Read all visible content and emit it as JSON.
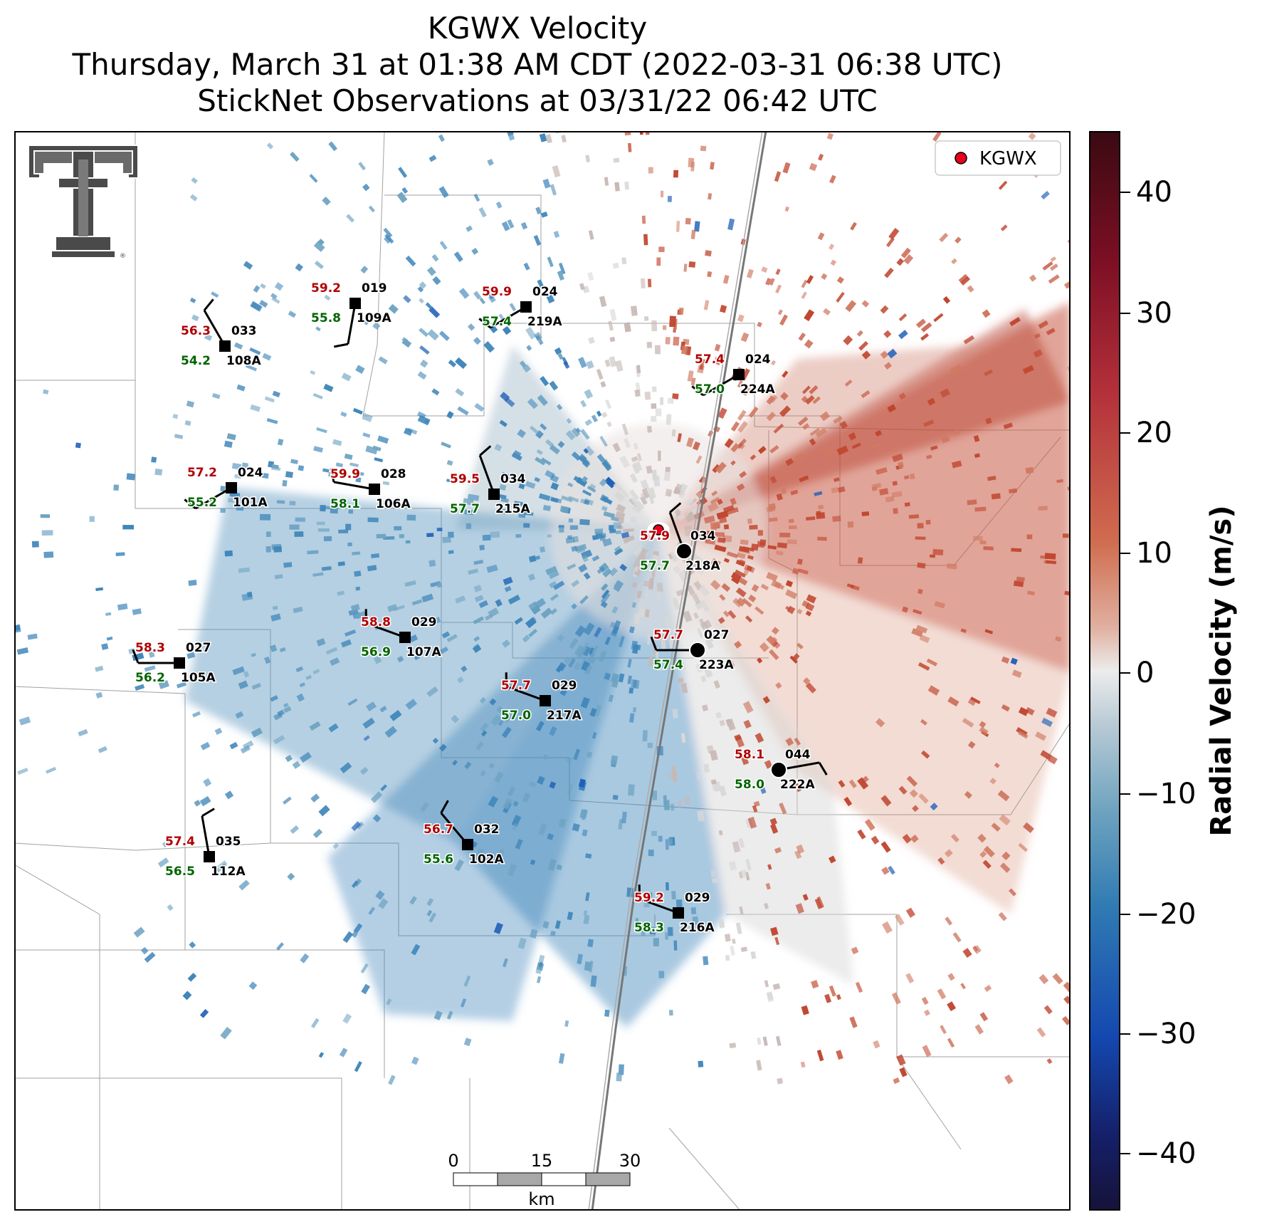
{
  "title": {
    "line1": "KGWX Velocity",
    "line2": "Thursday, March 31 at 01:38 AM CDT (2022-03-31 06:38 UTC)",
    "line3": "StickNet Observations at 03/31/22 06:42 UTC"
  },
  "legend": {
    "label": "KGWX",
    "marker_color": "#e8001c"
  },
  "colorbar": {
    "label": "Radial Velocity (m/s)",
    "ticks": [
      "40",
      "30",
      "20",
      "10",
      "0",
      "−10",
      "−20",
      "−30",
      "−40"
    ],
    "range": [
      -45,
      45
    ],
    "colors": {
      "positive": "#c0452e",
      "neutral": "#e8e8e8",
      "negative": "#2f7ab3"
    }
  },
  "scale_bar": {
    "labels": [
      "0",
      "15",
      "30"
    ],
    "unit": "km"
  },
  "logo": {
    "name": "texas-tech-double-t-logo",
    "color": "#4a4a4a"
  },
  "stations": [
    {
      "id": "109A",
      "temp": "59.2",
      "dew": "55.8",
      "dir": "019"
    },
    {
      "id": "219A",
      "temp": "59.9",
      "dew": "57.4",
      "dir": "024"
    },
    {
      "id": "108A",
      "temp": "56.3",
      "dew": "54.2",
      "dir": "033"
    },
    {
      "id": "224A",
      "temp": "57.4",
      "dew": "57.0",
      "dir": "024"
    },
    {
      "id": "101A",
      "temp": "57.2",
      "dew": "55.2",
      "dir": "024"
    },
    {
      "id": "106A",
      "temp": "59.9",
      "dew": "58.1",
      "dir": "028"
    },
    {
      "id": "215A",
      "temp": "59.5",
      "dew": "57.7",
      "dir": "034"
    },
    {
      "id": "218A",
      "temp": "57.9",
      "dew": "57.7",
      "dir": "034"
    },
    {
      "id": "107A",
      "temp": "58.8",
      "dew": "56.9",
      "dir": "029"
    },
    {
      "id": "105A",
      "temp": "58.3",
      "dew": "56.2",
      "dir": "027"
    },
    {
      "id": "223A",
      "temp": "57.7",
      "dew": "57.4",
      "dir": "027"
    },
    {
      "id": "217A",
      "temp": "57.7",
      "dew": "57.0",
      "dir": "029"
    },
    {
      "id": "222A",
      "temp": "58.1",
      "dew": "58.0",
      "dir": "044"
    },
    {
      "id": "112A",
      "temp": "57.4",
      "dew": "56.5",
      "dir": "035"
    },
    {
      "id": "102A",
      "temp": "56.7",
      "dew": "55.6",
      "dir": "032"
    },
    {
      "id": "216A",
      "temp": "59.2",
      "dew": "58.3",
      "dir": "029"
    }
  ]
}
